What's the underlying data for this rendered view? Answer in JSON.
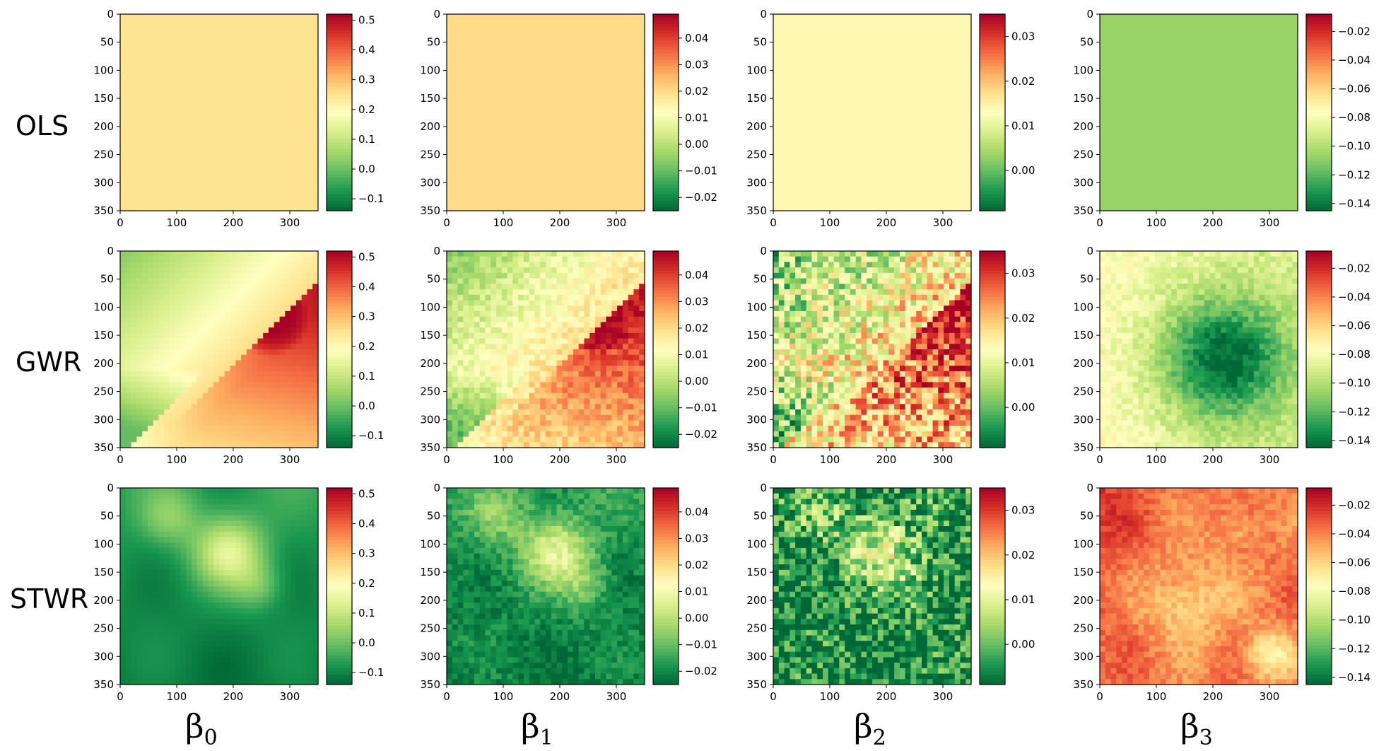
{
  "figure": {
    "rows": [
      "OLS",
      "GWR",
      "STWR"
    ],
    "columns": [
      {
        "symbol": "β",
        "subscript": "0"
      },
      {
        "symbol": "β",
        "subscript": "1"
      },
      {
        "symbol": "β",
        "subscript": "2"
      },
      {
        "symbol": "β",
        "subscript": "3"
      }
    ]
  },
  "chart_data": {
    "type": "heatmap",
    "colormap": "RdYlGn_r",
    "x_ticks": [
      0,
      100,
      200,
      300
    ],
    "y_ticks": [
      0,
      50,
      100,
      150,
      200,
      250,
      300,
      350
    ],
    "xlim": [
      0,
      350
    ],
    "ylim": [
      350,
      0
    ],
    "colorbars": [
      {
        "min": -0.14,
        "max": 0.52,
        "ticks": [
          -0.1,
          0.0,
          0.1,
          0.2,
          0.3,
          0.4,
          0.5
        ],
        "tick_labels": [
          "−0.1",
          "0.0",
          "0.1",
          "0.2",
          "0.3",
          "0.4",
          "0.5"
        ]
      },
      {
        "min": -0.025,
        "max": 0.049,
        "ticks": [
          -0.02,
          -0.01,
          0.0,
          0.01,
          0.02,
          0.03,
          0.04
        ],
        "tick_labels": [
          "−0.02",
          "−0.01",
          "0.00",
          "0.01",
          "0.02",
          "0.03",
          "0.04"
        ]
      },
      {
        "min": -0.009,
        "max": 0.035,
        "ticks": [
          0.0,
          0.01,
          0.02,
          0.03
        ],
        "tick_labels": [
          "0.00",
          "0.01",
          "0.02",
          "0.03"
        ]
      },
      {
        "min": -0.145,
        "max": -0.008,
        "ticks": [
          -0.14,
          -0.12,
          -0.1,
          -0.08,
          -0.06,
          -0.04,
          -0.02
        ],
        "tick_labels": [
          "−0.14",
          "−0.12",
          "−0.10",
          "−0.08",
          "−0.06",
          "−0.04",
          "−0.02"
        ]
      }
    ],
    "panels": [
      {
        "row": "OLS",
        "column": "β0",
        "pattern": "constant",
        "value": 0.25
      },
      {
        "row": "OLS",
        "column": "β1",
        "pattern": "constant",
        "value": 0.02
      },
      {
        "row": "OLS",
        "column": "β2",
        "pattern": "constant",
        "value": 0.014
      },
      {
        "row": "OLS",
        "column": "β3",
        "pattern": "constant",
        "value": -0.107
      },
      {
        "row": "GWR",
        "column": "β0",
        "pattern": "gwr",
        "noise": 0.0
      },
      {
        "row": "GWR",
        "column": "β1",
        "pattern": "gwr",
        "noise": 0.07
      },
      {
        "row": "GWR",
        "column": "β2",
        "pattern": "gwr",
        "noise": 0.25
      },
      {
        "row": "GWR",
        "column": "β3",
        "pattern": "gwr3",
        "noise": 0.06
      },
      {
        "row": "STWR",
        "column": "β0",
        "pattern": "stwr",
        "noise": 0.0
      },
      {
        "row": "STWR",
        "column": "β1",
        "pattern": "stwr",
        "noise": 0.06
      },
      {
        "row": "STWR",
        "column": "β2",
        "pattern": "stwr",
        "noise": 0.22
      },
      {
        "row": "STWR",
        "column": "β3",
        "pattern": "stwr3",
        "noise": 0.05
      }
    ]
  }
}
